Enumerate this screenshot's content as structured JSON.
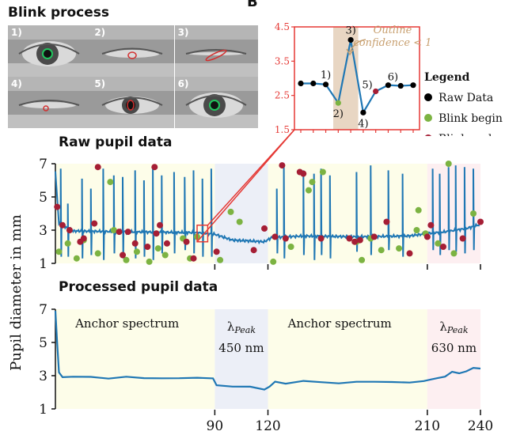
{
  "panel_letter": "B",
  "blink_title": "Blink process",
  "blink_frames": [
    {
      "label": "1)",
      "state": "open-green"
    },
    {
      "label": "2)",
      "state": "closing-red"
    },
    {
      "label": "3)",
      "state": "closed-red"
    },
    {
      "label": "4)",
      "state": "opening-red"
    },
    {
      "label": "5)",
      "state": "half-open-red"
    },
    {
      "label": "6)",
      "state": "open-green"
    }
  ],
  "colors": {
    "line": "#1f77b4",
    "raw": "#000000",
    "blink_begin": "#7cb342",
    "blink_end": "#a51e35",
    "zoom_red": "#e53935",
    "anchor_bg": "#fdfde9",
    "blue_bg": "#eceff7",
    "red_bg": "#fdeff1",
    "band": "#e8d6c3",
    "annotation": "#c8a070"
  },
  "legend": {
    "title": "Legend",
    "items": [
      {
        "key": "raw",
        "label": "Raw Data"
      },
      {
        "key": "blink_begin",
        "label": "Blink begin"
      },
      {
        "key": "blink_end",
        "label": "Blink end"
      }
    ]
  },
  "annotation": {
    "line1": "Outline",
    "line2": "confidence < 1"
  },
  "raw_title": "Raw pupil data",
  "processed_title": "Processed pupil data",
  "ylabel": "Pupil diameter in mm",
  "region_labels": {
    "anchor1": "Anchor spectrum",
    "blue_lambda": "λ",
    "blue_sub": "Peak",
    "blue_nm": "450 nm",
    "anchor2": "Anchor spectrum",
    "red_lambda": "λ",
    "red_sub": "Peak",
    "red_nm": "630 nm"
  },
  "chart_data": [
    {
      "type": "line",
      "title": "",
      "yticks": [
        "1.5",
        "2.5",
        "3.5",
        "4.5"
      ],
      "ylim": [
        1.5,
        4.5
      ],
      "x": [
        1,
        2,
        3,
        4,
        5,
        6,
        7,
        8,
        9,
        10
      ],
      "values": [
        2.85,
        2.85,
        2.82,
        2.28,
        4.12,
        2.0,
        2.62,
        2.8,
        2.78,
        2.8
      ],
      "point_types": [
        "raw",
        "raw",
        "raw",
        "blink_begin",
        "raw",
        "raw",
        "blink_end",
        "raw",
        "raw",
        "raw"
      ],
      "point_labels": [
        "",
        "",
        "1)",
        "2)",
        "3)",
        "4)",
        "5)",
        "6)",
        "",
        ""
      ],
      "highlight_band": [
        3.6,
        5.6
      ]
    },
    {
      "type": "line",
      "title": "Raw pupil data",
      "yticks": [
        "1",
        "3",
        "5",
        "7"
      ],
      "ylim": [
        1,
        7
      ],
      "xlim": [
        0,
        240
      ],
      "baseline": [
        [
          0,
          6.5
        ],
        [
          2,
          3.4
        ],
        [
          10,
          2.95
        ],
        [
          40,
          2.9
        ],
        [
          80,
          2.85
        ],
        [
          90,
          2.75
        ],
        [
          100,
          2.4
        ],
        [
          110,
          2.35
        ],
        [
          118,
          2.3
        ],
        [
          122,
          2.55
        ],
        [
          140,
          2.65
        ],
        [
          170,
          2.6
        ],
        [
          200,
          2.65
        ],
        [
          210,
          2.8
        ],
        [
          220,
          2.9
        ],
        [
          232,
          3.1
        ],
        [
          240,
          3.35
        ]
      ],
      "spikes": [
        [
          3,
          1.4,
          6.7
        ],
        [
          7,
          1.4,
          4.6
        ],
        [
          15,
          1.3,
          6.1
        ],
        [
          20,
          1.5,
          5.5
        ],
        [
          27,
          1.2,
          6.7
        ],
        [
          33,
          1.6,
          6.3
        ],
        [
          38,
          1.3,
          6.2
        ],
        [
          45,
          1.3,
          6.6
        ],
        [
          50,
          1.4,
          6.0
        ],
        [
          55,
          1.2,
          6.8
        ],
        [
          60,
          1.6,
          6.3
        ],
        [
          67,
          1.6,
          6.5
        ],
        [
          73,
          1.8,
          6.2
        ],
        [
          78,
          1.6,
          6.6
        ],
        [
          83,
          1.4,
          6.1
        ],
        [
          88,
          1.4,
          6.7
        ],
        [
          125,
          1.6,
          5.5
        ],
        [
          129,
          1.3,
          6.9
        ],
        [
          140,
          1.5,
          6.6
        ],
        [
          146,
          1.2,
          6.4
        ],
        [
          150,
          1.5,
          6.7
        ],
        [
          155,
          1.3,
          6.3
        ],
        [
          170,
          1.7,
          6.5
        ],
        [
          178,
          1.5,
          6.9
        ],
        [
          188,
          1.8,
          6.6
        ],
        [
          196,
          1.4,
          6.4
        ],
        [
          213,
          1.8,
          6.7
        ],
        [
          217,
          1.5,
          6.4
        ],
        [
          222,
          1.8,
          6.8
        ],
        [
          226,
          1.7,
          6.9
        ],
        [
          231,
          1.6,
          6.8
        ],
        [
          236,
          1.8,
          6.7
        ]
      ],
      "blink_begin": [
        [
          2,
          1.7
        ],
        [
          7,
          2.2
        ],
        [
          12,
          1.3
        ],
        [
          16,
          2.4
        ],
        [
          24,
          1.6
        ],
        [
          31,
          5.9
        ],
        [
          33,
          3.0
        ],
        [
          40,
          1.2
        ],
        [
          46,
          1.7
        ],
        [
          53,
          1.1
        ],
        [
          58,
          1.9
        ],
        [
          62,
          1.5
        ],
        [
          72,
          2.5
        ],
        [
          76,
          1.3
        ],
        [
          80,
          2.6
        ],
        [
          93,
          1.2
        ],
        [
          99,
          4.1
        ],
        [
          104,
          3.5
        ],
        [
          123,
          1.1
        ],
        [
          133,
          2.0
        ],
        [
          143,
          5.4
        ],
        [
          145,
          5.9
        ],
        [
          151,
          6.5
        ],
        [
          170,
          2.3
        ],
        [
          173,
          1.2
        ],
        [
          178,
          2.5
        ],
        [
          184,
          1.8
        ],
        [
          194,
          1.9
        ],
        [
          204,
          3.0
        ],
        [
          205,
          4.2
        ],
        [
          209,
          2.8
        ],
        [
          216,
          2.2
        ],
        [
          222,
          7.0
        ],
        [
          225,
          1.6
        ],
        [
          236,
          4.0
        ]
      ],
      "blink_end": [
        [
          1,
          4.4
        ],
        [
          4,
          3.3
        ],
        [
          8,
          3.0
        ],
        [
          14,
          2.3
        ],
        [
          16,
          2.5
        ],
        [
          22,
          3.4
        ],
        [
          24,
          6.8
        ],
        [
          36,
          2.9
        ],
        [
          38,
          1.5
        ],
        [
          41,
          2.9
        ],
        [
          45,
          2.2
        ],
        [
          52,
          2.0
        ],
        [
          56,
          6.8
        ],
        [
          57,
          2.8
        ],
        [
          59,
          3.3
        ],
        [
          63,
          2.2
        ],
        [
          74,
          2.3
        ],
        [
          78,
          1.3
        ],
        [
          91,
          1.7
        ],
        [
          112,
          1.8
        ],
        [
          118,
          3.1
        ],
        [
          124,
          2.6
        ],
        [
          128,
          6.9
        ],
        [
          130,
          2.5
        ],
        [
          138,
          6.5
        ],
        [
          140,
          6.4
        ],
        [
          150,
          2.5
        ],
        [
          166,
          2.5
        ],
        [
          169,
          2.3
        ],
        [
          172,
          2.4
        ],
        [
          180,
          2.6
        ],
        [
          187,
          3.5
        ],
        [
          200,
          1.6
        ],
        [
          210,
          2.6
        ],
        [
          212,
          3.3
        ],
        [
          219,
          2.0
        ],
        [
          230,
          2.5
        ],
        [
          240,
          3.5
        ]
      ],
      "regions": [
        {
          "x0": 0,
          "x1": 90,
          "color": "anchor_bg"
        },
        {
          "x0": 90,
          "x1": 120,
          "color": "blue_bg"
        },
        {
          "x0": 120,
          "x1": 210,
          "color": "anchor_bg"
        },
        {
          "x0": 210,
          "x1": 240,
          "color": "red_bg"
        }
      ],
      "zoom_box": {
        "x0": 80,
        "x1": 86,
        "y0": 2.3,
        "y1": 3.3
      }
    },
    {
      "type": "line",
      "title": "Processed pupil data",
      "yticks": [
        "1",
        "3",
        "5",
        "7"
      ],
      "xticks": [
        "90",
        "120",
        "210",
        "240"
      ],
      "xtick_values": [
        90,
        120,
        210,
        240
      ],
      "ylim": [
        1,
        7
      ],
      "xlim": [
        0,
        240
      ],
      "series": [
        [
          0,
          6.9
        ],
        [
          1,
          5.0
        ],
        [
          2,
          3.2
        ],
        [
          4,
          2.95
        ],
        [
          10,
          2.9
        ],
        [
          20,
          2.95
        ],
        [
          30,
          2.85
        ],
        [
          40,
          2.9
        ],
        [
          50,
          2.85
        ],
        [
          60,
          2.88
        ],
        [
          70,
          2.83
        ],
        [
          80,
          2.85
        ],
        [
          89,
          2.8
        ],
        [
          91,
          2.4
        ],
        [
          100,
          2.35
        ],
        [
          110,
          2.3
        ],
        [
          118,
          2.2
        ],
        [
          121,
          2.35
        ],
        [
          124,
          2.6
        ],
        [
          130,
          2.55
        ],
        [
          140,
          2.65
        ],
        [
          150,
          2.6
        ],
        [
          160,
          2.58
        ],
        [
          170,
          2.62
        ],
        [
          180,
          2.6
        ],
        [
          190,
          2.65
        ],
        [
          200,
          2.6
        ],
        [
          208,
          2.65
        ],
        [
          212,
          2.75
        ],
        [
          216,
          2.9
        ],
        [
          220,
          2.95
        ],
        [
          224,
          3.2
        ],
        [
          228,
          3.15
        ],
        [
          232,
          3.3
        ],
        [
          236,
          3.45
        ],
        [
          240,
          3.4
        ]
      ]
    }
  ]
}
